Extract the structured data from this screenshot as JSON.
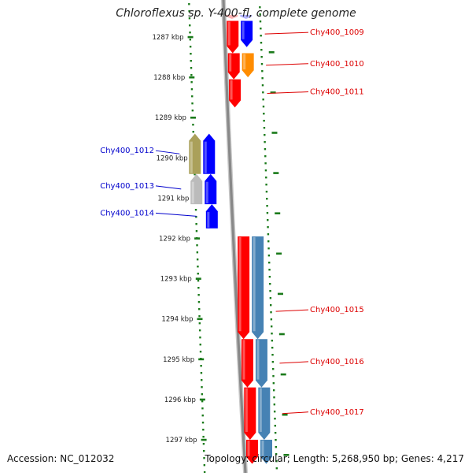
{
  "title": "Chloroflexus sp. Y-400-fl, complete genome",
  "footer": {
    "accession_label": "Accession:",
    "accession": "NC_012032",
    "topology_label": "Topology:",
    "topology": "circular",
    "length_label": "Length:",
    "length": "5,268,950 bp",
    "genes_label": "Genes:",
    "genes": "4,217"
  },
  "ruler_unit": "kbp",
  "ruler_ticks": [
    1287,
    1288,
    1289,
    1290,
    1291,
    1292,
    1293,
    1294,
    1295,
    1296,
    1297
  ],
  "genes": [
    {
      "id": "g-top-a",
      "label": "",
      "color": "#ff0000",
      "strand": "forward",
      "track": "forward-inner",
      "start_kbp": 1286.45,
      "end_kbp": 1286.55,
      "faded": true
    },
    {
      "id": "g-top-b",
      "label": "",
      "color": "#0000ff",
      "strand": "forward",
      "track": "forward-outer",
      "start_kbp": 1286.45,
      "end_kbp": 1286.55,
      "faded": true
    },
    {
      "id": "g-red-1",
      "label": "",
      "color": "#ff0000",
      "strand": "forward",
      "track": "forward-inner",
      "start_kbp": 1286.6,
      "end_kbp": 1287.4
    },
    {
      "id": "g-1009",
      "label": "Chy400_1009",
      "color": "#0000ff",
      "strand": "forward",
      "track": "forward-outer",
      "start_kbp": 1286.6,
      "end_kbp": 1287.25
    },
    {
      "id": "g-red-2",
      "label": "",
      "color": "#ff0000",
      "strand": "forward",
      "track": "forward-inner",
      "start_kbp": 1287.4,
      "end_kbp": 1288.05
    },
    {
      "id": "g-1010",
      "label": "Chy400_1010",
      "color": "#ff8c00",
      "strand": "forward",
      "track": "forward-outer",
      "start_kbp": 1287.4,
      "end_kbp": 1288.0
    },
    {
      "id": "g-1011",
      "label": "Chy400_1011",
      "color": "#ff0000",
      "strand": "forward",
      "track": "forward-inner",
      "start_kbp": 1288.05,
      "end_kbp": 1288.75
    },
    {
      "id": "g-1012",
      "label": "Chy400_1012",
      "color": "#aaa05a",
      "strand": "reverse",
      "track": "reverse-outer",
      "start_kbp": 1289.4,
      "end_kbp": 1290.4
    },
    {
      "id": "g-blue-r1",
      "label": "",
      "color": "#0000ff",
      "strand": "reverse",
      "track": "reverse-inner",
      "start_kbp": 1289.4,
      "end_kbp": 1290.4
    },
    {
      "id": "g-1013",
      "label": "Chy400_1013",
      "color": "#bbbbbb",
      "strand": "reverse",
      "track": "reverse-outer",
      "start_kbp": 1290.4,
      "end_kbp": 1291.15
    },
    {
      "id": "g-blue-r2",
      "label": "",
      "color": "#0000ff",
      "strand": "reverse",
      "track": "reverse-inner",
      "start_kbp": 1290.4,
      "end_kbp": 1291.15
    },
    {
      "id": "g-1014",
      "label": "Chy400_1014",
      "color": "#0000ff",
      "strand": "reverse",
      "track": "reverse-inner",
      "start_kbp": 1291.15,
      "end_kbp": 1291.75
    },
    {
      "id": "g-1015",
      "label": "Chy400_1015",
      "color": "#ff0000",
      "strand": "forward",
      "track": "forward-inner",
      "start_kbp": 1291.95,
      "end_kbp": 1294.5
    },
    {
      "id": "g-1015b",
      "label": "",
      "color": "#4682b4",
      "strand": "forward",
      "track": "forward-outer",
      "start_kbp": 1291.95,
      "end_kbp": 1294.5
    },
    {
      "id": "g-1016",
      "label": "Chy400_1016",
      "color": "#ff0000",
      "strand": "forward",
      "track": "forward-inner",
      "start_kbp": 1294.5,
      "end_kbp": 1295.7
    },
    {
      "id": "g-1016b",
      "label": "",
      "color": "#4682b4",
      "strand": "forward",
      "track": "forward-outer",
      "start_kbp": 1294.5,
      "end_kbp": 1295.7
    },
    {
      "id": "g-1017",
      "label": "Chy400_1017",
      "color": "#ff0000",
      "strand": "forward",
      "track": "forward-inner",
      "start_kbp": 1295.7,
      "end_kbp": 1297.0
    },
    {
      "id": "g-1017b",
      "label": "",
      "color": "#4682b4",
      "strand": "forward",
      "track": "forward-outer",
      "start_kbp": 1295.7,
      "end_kbp": 1297.0
    },
    {
      "id": "g-red-bottom",
      "label": "",
      "color": "#ff0000",
      "strand": "forward",
      "track": "forward-inner",
      "start_kbp": 1297.0,
      "end_kbp": 1297.6
    },
    {
      "id": "g-blue-bottom",
      "label": "",
      "color": "#4682b4",
      "strand": "forward",
      "track": "forward-outer",
      "start_kbp": 1297.0,
      "end_kbp": 1297.6
    }
  ],
  "colors": {
    "forward_label": "#dd0000",
    "reverse_label": "#0000cc",
    "ruler": "#1a7a1a",
    "backbone": "#888888"
  }
}
